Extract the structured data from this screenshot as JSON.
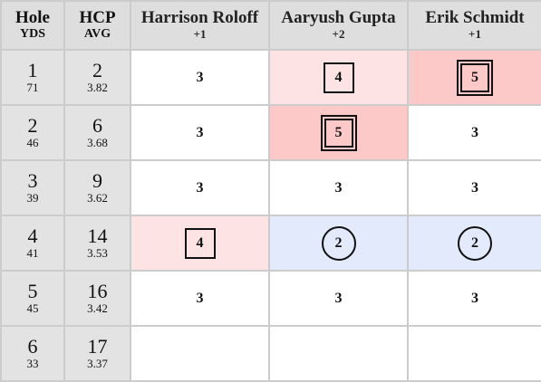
{
  "header": {
    "hole_label": "Hole",
    "yds_label": "YDS",
    "hcp_label": "HCP",
    "avg_label": "AVG",
    "players": [
      {
        "name": "Harrison Roloff",
        "to_par": "+1"
      },
      {
        "name": "Aaryush Gupta",
        "to_par": "+2"
      },
      {
        "name": "Erik Schmidt",
        "to_par": "+1"
      }
    ]
  },
  "rows": [
    {
      "hole": "1",
      "yds": "71",
      "hcp": "2",
      "avg": "3.82",
      "scores": [
        "3",
        "4",
        "5"
      ],
      "marks": [
        "plain",
        "bogey",
        "double"
      ]
    },
    {
      "hole": "2",
      "yds": "46",
      "hcp": "6",
      "avg": "3.68",
      "scores": [
        "3",
        "5",
        "3"
      ],
      "marks": [
        "plain",
        "double",
        "plain"
      ]
    },
    {
      "hole": "3",
      "yds": "39",
      "hcp": "9",
      "avg": "3.62",
      "scores": [
        "3",
        "3",
        "3"
      ],
      "marks": [
        "plain",
        "plain",
        "plain"
      ]
    },
    {
      "hole": "4",
      "yds": "41",
      "hcp": "14",
      "avg": "3.53",
      "scores": [
        "4",
        "2",
        "2"
      ],
      "marks": [
        "bogey",
        "birdie",
        "birdie"
      ]
    },
    {
      "hole": "5",
      "yds": "45",
      "hcp": "16",
      "avg": "3.42",
      "scores": [
        "3",
        "3",
        "3"
      ],
      "marks": [
        "plain",
        "plain",
        "plain"
      ]
    },
    {
      "hole": "6",
      "yds": "33",
      "hcp": "17",
      "avg": "3.37",
      "scores": [
        "",
        "",
        ""
      ],
      "marks": [
        "plain",
        "plain",
        "plain"
      ]
    }
  ],
  "colors": {
    "bogey_bg": "#fde3e3",
    "double_bg": "#fcc9c8",
    "birdie_bg": "#e3eafb",
    "header_bg": "#dedede",
    "hole_col_bg": "#e3e3e3"
  }
}
